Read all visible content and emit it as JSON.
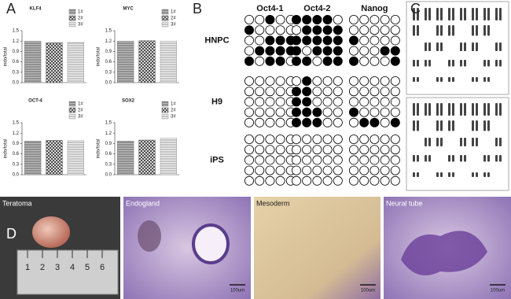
{
  "panel_labels": [
    "A",
    "B",
    "C",
    "D"
  ],
  "chart_data": [
    {
      "type": "bar",
      "title": "KLF4",
      "y_label": "indo/total",
      "ylim": [
        0,
        1.5
      ],
      "yticks": [
        {
          "value": 0,
          "label": "0.0"
        },
        0.3,
        0.6,
        0.9,
        1.2,
        1.5
      ],
      "series": [
        {
          "name": "1#",
          "color": "#777",
          "values": [
            1.2
          ]
        },
        {
          "name": "2#",
          "color": "#555",
          "values": [
            1.15
          ]
        },
        {
          "name": "3#",
          "color": "#999",
          "values": [
            1.16
          ]
        }
      ]
    },
    {
      "type": "bar",
      "title": "MYC",
      "y_label": "indo/total",
      "ylim": [
        0,
        1.5
      ],
      "yticks": [
        {
          "value": 0,
          "label": "0.0"
        },
        0.3,
        0.6,
        0.9,
        1.2,
        1.5
      ],
      "series": [
        {
          "name": "1#",
          "color": "#777",
          "values": [
            1.2
          ]
        },
        {
          "name": "2#",
          "color": "#555",
          "values": [
            1.21
          ]
        },
        {
          "name": "3#",
          "color": "#999",
          "values": [
            1.2
          ]
        }
      ]
    },
    {
      "type": "bar",
      "title": "OCT-4",
      "y_label": "indo/total",
      "ylim": [
        0,
        1.5
      ],
      "yticks": [
        {
          "value": 0,
          "label": "0.0"
        },
        0.3,
        0.6,
        0.9,
        1.2,
        1.5
      ],
      "series": [
        {
          "name": "1#",
          "color": "#777",
          "values": [
            0.97
          ]
        },
        {
          "name": "2#",
          "color": "#555",
          "values": [
            0.99
          ]
        },
        {
          "name": "3#",
          "color": "#999",
          "values": [
            0.98
          ]
        }
      ]
    },
    {
      "type": "bar",
      "title": "SOX2",
      "y_label": "indo/total",
      "ylim": [
        0,
        1.5
      ],
      "yticks": [
        {
          "value": 0,
          "label": "0.0"
        },
        0.3,
        0.6,
        0.9,
        1.2,
        1.5
      ],
      "series": [
        {
          "name": "1#",
          "color": "#777",
          "values": [
            0.97
          ]
        },
        {
          "name": "2#",
          "color": "#555",
          "values": [
            1.0
          ]
        },
        {
          "name": "3#",
          "color": "#999",
          "values": [
            1.05
          ]
        }
      ]
    }
  ],
  "methylation": {
    "columns": [
      "Oct4-1",
      "Oct4-2",
      "Nanog"
    ],
    "rows": [
      "HNPC",
      "H9",
      "iPS"
    ],
    "sites": [
      [
        [
          [
            0,
            0,
            1,
            0,
            0
          ],
          [
            1,
            0,
            0,
            0,
            0
          ],
          [
            0,
            0,
            1,
            1,
            1
          ],
          [
            0,
            1,
            1,
            1,
            1
          ],
          [
            1,
            0,
            1,
            1,
            0
          ]
        ],
        [
          [
            1,
            1,
            1,
            1,
            0
          ],
          [
            0,
            1,
            1,
            1,
            1
          ],
          [
            1,
            1,
            1,
            1,
            1
          ],
          [
            1,
            0,
            1,
            1,
            1
          ],
          [
            1,
            1,
            0,
            1,
            1
          ]
        ],
        [
          [
            0,
            0,
            0,
            0,
            0
          ],
          [
            0,
            0,
            0,
            0,
            0
          ],
          [
            1,
            0,
            0,
            0,
            0
          ],
          [
            0,
            0,
            0,
            1,
            1
          ],
          [
            1,
            0,
            0,
            0,
            1
          ]
        ]
      ],
      [
        [
          [
            0,
            0,
            0,
            0,
            0
          ],
          [
            0,
            0,
            0,
            0,
            0
          ],
          [
            0,
            0,
            0,
            0,
            0
          ],
          [
            0,
            0,
            0,
            0,
            0
          ],
          [
            0,
            0,
            0,
            0,
            0
          ]
        ],
        [
          [
            0,
            1,
            0,
            0,
            0
          ],
          [
            1,
            1,
            0,
            0,
            0
          ],
          [
            1,
            1,
            0,
            0,
            0
          ],
          [
            1,
            1,
            1,
            0,
            0
          ],
          [
            1,
            1,
            1,
            0,
            0
          ]
        ],
        [
          [
            0,
            0,
            0,
            0,
            0
          ],
          [
            0,
            0,
            0,
            0,
            0
          ],
          [
            0,
            0,
            0,
            0,
            0
          ],
          [
            1,
            0,
            0,
            0,
            0
          ],
          [
            0,
            1,
            1,
            0,
            1
          ]
        ]
      ],
      [
        [
          [
            0,
            0,
            0,
            0,
            0
          ],
          [
            0,
            0,
            0,
            0,
            0
          ],
          [
            0,
            0,
            0,
            0,
            0
          ],
          [
            0,
            0,
            0,
            0,
            0
          ],
          [
            0,
            0,
            0,
            0,
            0
          ]
        ],
        [
          [
            0,
            0,
            0,
            0,
            0
          ],
          [
            0,
            0,
            0,
            0,
            0
          ],
          [
            0,
            0,
            0,
            0,
            0
          ],
          [
            0,
            0,
            0,
            0,
            0
          ],
          [
            0,
            0,
            0,
            0,
            0
          ]
        ],
        [
          [
            0,
            0,
            0,
            0,
            0
          ],
          [
            0,
            0,
            0,
            0,
            0
          ],
          [
            0,
            0,
            0,
            0,
            0
          ],
          [
            0,
            0,
            0,
            0,
            0
          ],
          [
            0,
            0,
            0,
            0,
            0
          ]
        ]
      ]
    ]
  },
  "histology": {
    "panels": [
      {
        "label": "Teratoma"
      },
      {
        "label": "Endogland",
        "scale": "100um"
      },
      {
        "label": "Mesoderm",
        "scale": "100um"
      },
      {
        "label": "Neural tube",
        "scale": "100um"
      }
    ],
    "ruler": [
      1,
      2,
      3,
      4,
      5,
      6
    ]
  }
}
